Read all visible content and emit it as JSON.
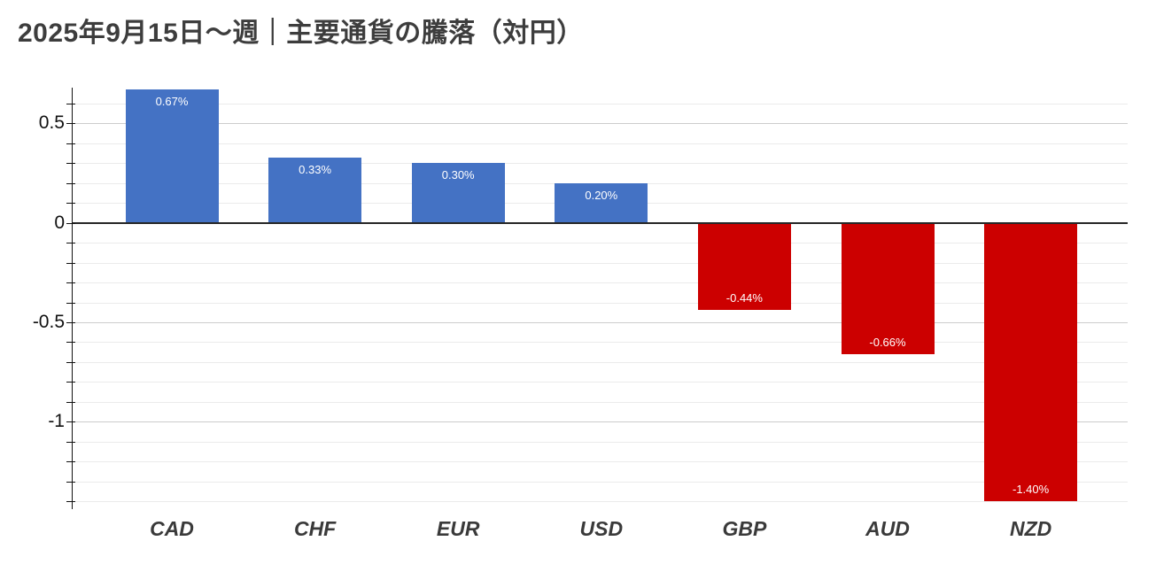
{
  "title": "2025年9月15日〜週｜主要通貨の騰落（対円）",
  "chart_data": {
    "type": "bar",
    "title": "2025年9月15日〜週｜主要通貨の騰落（対円）",
    "categories": [
      "CAD",
      "CHF",
      "EUR",
      "USD",
      "GBP",
      "AUD",
      "NZD"
    ],
    "values": [
      0.67,
      0.33,
      0.3,
      0.2,
      -0.44,
      -0.66,
      -1.4
    ],
    "data_labels": [
      "0.67%",
      "0.33%",
      "0.30%",
      "0.20%",
      "-0.44%",
      "-0.66%",
      "-1.40%"
    ],
    "unit": "%",
    "xlabel": "",
    "ylabel": "",
    "ylim": [
      -1.44,
      0.68
    ],
    "yticks_labeled": [
      {
        "value": 0.5,
        "label": "0.5"
      },
      {
        "value": 0,
        "label": "0"
      },
      {
        "value": -0.5,
        "label": "-0.5"
      },
      {
        "value": -1,
        "label": "-1"
      }
    ],
    "grid": true,
    "grid_minor_step": 0.1,
    "legend": "none",
    "colors": {
      "positive_bar": "#4472c4",
      "negative_bar": "#cc0000",
      "bar_label_text": "#ffffff",
      "zero_line": "#262626",
      "gridline_minor": "#ebebeb",
      "gridline_major": "#cccccc",
      "axis_text": "#111111",
      "category_text": "#3a3a3a",
      "title_text": "#3d3d3d"
    }
  }
}
